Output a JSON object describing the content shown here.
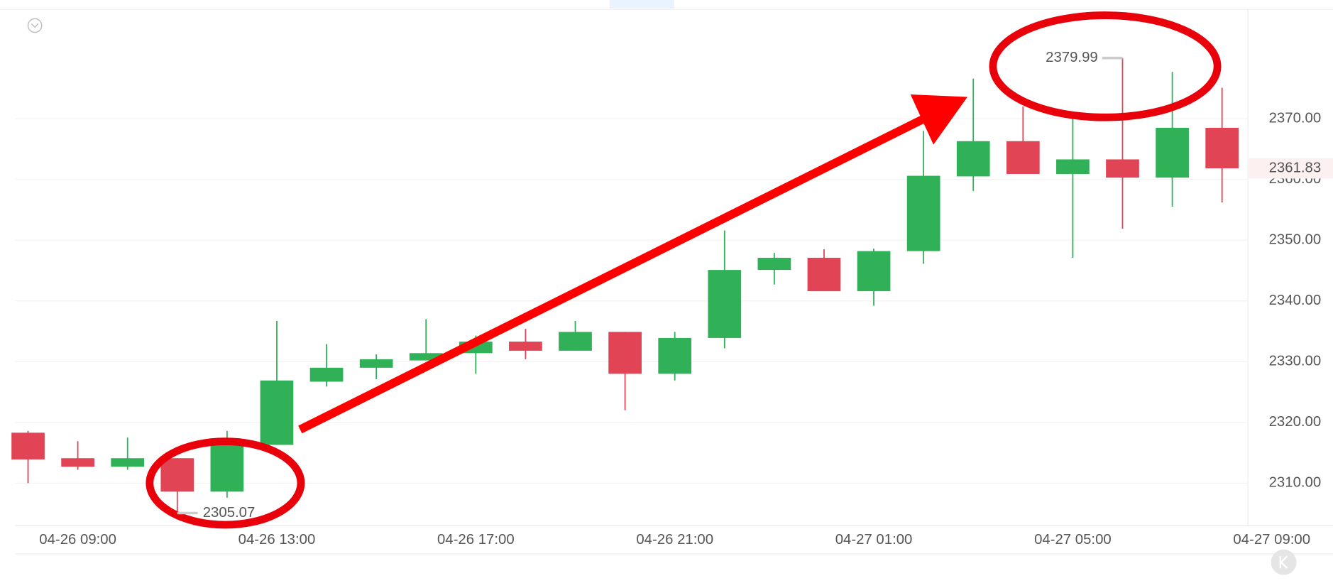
{
  "chart_data": {
    "type": "candlestick",
    "categories": [
      null,
      "04-26 09:00",
      null,
      null,
      null,
      "04-26 13:00",
      null,
      null,
      null,
      "04-26 17:00",
      null,
      null,
      null,
      "04-26 21:00",
      null,
      null,
      null,
      "04-27 01:00",
      null,
      null,
      null,
      "04-27 05:00",
      null,
      null,
      null,
      "04-27 09:00"
    ],
    "open": [
      2318.3,
      2314.1,
      2312.7,
      2314.1,
      2308.6,
      2316.3,
      2326.7,
      2329.0,
      2330.2,
      2331.4,
      2333.3,
      2331.8,
      2334.9,
      2328.0,
      2333.9,
      2345.1,
      2347.1,
      2341.6,
      2348.2,
      2360.5,
      2366.3,
      2360.9,
      2363.3,
      2360.3,
      2368.5,
      null
    ],
    "high": [
      2318.6,
      2316.9,
      2317.5,
      2314.1,
      2318.6,
      2336.7,
      2332.9,
      2331.2,
      2337.0,
      2334.3,
      2335.4,
      2336.7,
      2334.9,
      2334.9,
      2351.6,
      2347.9,
      2348.5,
      2348.6,
      2368.0,
      2376.6,
      2372.0,
      2370.0,
      2379.99,
      2377.7,
      2375.1,
      null
    ],
    "low": [
      2310.0,
      2312.2,
      2312.2,
      2305.07,
      2307.6,
      2316.3,
      2325.9,
      2327.1,
      2330.2,
      2328.0,
      2330.4,
      2331.8,
      2322.0,
      2326.9,
      2332.2,
      2342.7,
      2341.6,
      2339.2,
      2346.1,
      2358.1,
      2360.9,
      2347.1,
      2351.9,
      2355.5,
      2356.2,
      null
    ],
    "close": [
      2313.9,
      2312.7,
      2314.1,
      2308.6,
      2316.3,
      2326.9,
      2329.0,
      2330.4,
      2331.4,
      2333.3,
      2331.8,
      2334.9,
      2328.0,
      2333.9,
      2345.1,
      2347.1,
      2341.6,
      2348.2,
      2360.6,
      2366.3,
      2360.9,
      2363.3,
      2360.3,
      2368.5,
      2361.83,
      null
    ],
    "up_color": "#30b158",
    "down_color": "#e04455",
    "ylim": [
      2303,
      2388
    ],
    "yticks": [
      {
        "value": 2310,
        "label": "2310.00"
      },
      {
        "value": 2320,
        "label": "2320.00"
      },
      {
        "value": 2330,
        "label": "2330.00"
      },
      {
        "value": 2340,
        "label": "2340.00"
      },
      {
        "value": 2350,
        "label": "2350.00"
      },
      {
        "value": 2360,
        "label": "2360.00"
      },
      {
        "value": 2370,
        "label": "2370.00"
      }
    ],
    "grid": true
  }
}
